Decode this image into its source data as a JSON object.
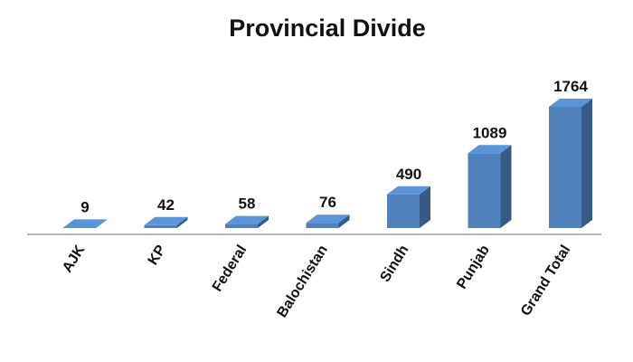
{
  "chart_data": {
    "type": "bar3d",
    "title": "Provincial Divide",
    "categories": [
      "AJK",
      "KP",
      "Federal",
      "Balochistan",
      "Sindh",
      "Punjab",
      "Grand Total"
    ],
    "values": [
      9,
      42,
      58,
      76,
      490,
      1089,
      1764
    ],
    "color": "#4f81bd"
  }
}
